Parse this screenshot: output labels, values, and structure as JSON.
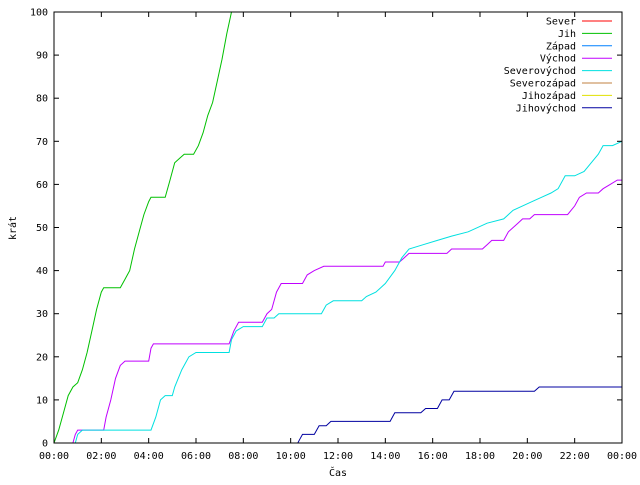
{
  "chart_data": {
    "type": "line",
    "title": "",
    "xlabel": "Čas",
    "ylabel": "krát",
    "xlim": [
      0,
      24
    ],
    "ylim": [
      0,
      100
    ],
    "grid": false,
    "legend_position": "top-right",
    "x_ticks": [
      {
        "value": 0,
        "label": "00:00"
      },
      {
        "value": 2,
        "label": "02:00"
      },
      {
        "value": 4,
        "label": "04:00"
      },
      {
        "value": 6,
        "label": "06:00"
      },
      {
        "value": 8,
        "label": "08:00"
      },
      {
        "value": 10,
        "label": "10:00"
      },
      {
        "value": 12,
        "label": "12:00"
      },
      {
        "value": 14,
        "label": "14:00"
      },
      {
        "value": 16,
        "label": "16:00"
      },
      {
        "value": 18,
        "label": "18:00"
      },
      {
        "value": 20,
        "label": "20:00"
      },
      {
        "value": 22,
        "label": "22:00"
      },
      {
        "value": 24,
        "label": "00:00"
      }
    ],
    "y_ticks": [
      {
        "value": 0,
        "label": "0"
      },
      {
        "value": 10,
        "label": "10"
      },
      {
        "value": 20,
        "label": "20"
      },
      {
        "value": 30,
        "label": "30"
      },
      {
        "value": 40,
        "label": "40"
      },
      {
        "value": 50,
        "label": "50"
      },
      {
        "value": 60,
        "label": "60"
      },
      {
        "value": 70,
        "label": "70"
      },
      {
        "value": 80,
        "label": "80"
      },
      {
        "value": 90,
        "label": "90"
      },
      {
        "value": 100,
        "label": "100"
      }
    ],
    "series": [
      {
        "name": "Sever",
        "color": "#ff0000",
        "points": []
      },
      {
        "name": "Jih",
        "color": "#00c000",
        "points": [
          [
            0,
            0
          ],
          [
            0.2,
            3
          ],
          [
            0.4,
            7
          ],
          [
            0.6,
            11
          ],
          [
            0.8,
            13
          ],
          [
            1.0,
            14
          ],
          [
            1.2,
            17
          ],
          [
            1.4,
            21
          ],
          [
            1.6,
            26
          ],
          [
            1.8,
            31
          ],
          [
            2.0,
            35
          ],
          [
            2.1,
            36
          ],
          [
            2.8,
            36
          ],
          [
            3.0,
            38
          ],
          [
            3.2,
            40
          ],
          [
            3.4,
            45
          ],
          [
            3.6,
            49
          ],
          [
            3.8,
            53
          ],
          [
            4.0,
            56
          ],
          [
            4.1,
            57
          ],
          [
            4.7,
            57
          ],
          [
            4.9,
            61
          ],
          [
            5.1,
            65
          ],
          [
            5.3,
            66
          ],
          [
            5.5,
            67
          ],
          [
            5.9,
            67
          ],
          [
            6.1,
            69
          ],
          [
            6.3,
            72
          ],
          [
            6.5,
            76
          ],
          [
            6.7,
            79
          ],
          [
            6.9,
            84
          ],
          [
            7.1,
            89
          ],
          [
            7.3,
            95
          ],
          [
            7.5,
            100
          ]
        ]
      },
      {
        "name": "Západ",
        "color": "#0080ff",
        "points": []
      },
      {
        "name": "Východ",
        "color": "#c000ff",
        "points": [
          [
            0,
            0
          ],
          [
            0.8,
            0
          ],
          [
            0.9,
            2
          ],
          [
            1.0,
            3
          ],
          [
            2.1,
            3
          ],
          [
            2.2,
            6
          ],
          [
            2.4,
            10
          ],
          [
            2.6,
            15
          ],
          [
            2.8,
            18
          ],
          [
            3.0,
            19
          ],
          [
            4.0,
            19
          ],
          [
            4.1,
            22
          ],
          [
            4.2,
            23
          ],
          [
            7.4,
            23
          ],
          [
            7.6,
            26
          ],
          [
            7.8,
            28
          ],
          [
            8.8,
            28
          ],
          [
            9.0,
            30
          ],
          [
            9.2,
            31
          ],
          [
            9.4,
            35
          ],
          [
            9.6,
            37
          ],
          [
            10.5,
            37
          ],
          [
            10.7,
            39
          ],
          [
            11.0,
            40
          ],
          [
            11.4,
            41
          ],
          [
            13.9,
            41
          ],
          [
            14.0,
            42
          ],
          [
            14.6,
            42
          ],
          [
            14.8,
            43
          ],
          [
            15.0,
            44
          ],
          [
            16.6,
            44
          ],
          [
            16.8,
            45
          ],
          [
            18.1,
            45
          ],
          [
            18.3,
            46
          ],
          [
            18.5,
            47
          ],
          [
            19.0,
            47
          ],
          [
            19.2,
            49
          ],
          [
            19.6,
            51
          ],
          [
            19.8,
            52
          ],
          [
            20.1,
            52
          ],
          [
            20.3,
            53
          ],
          [
            21.7,
            53
          ],
          [
            22.0,
            55
          ],
          [
            22.2,
            57
          ],
          [
            22.5,
            58
          ],
          [
            23.0,
            58
          ],
          [
            23.2,
            59
          ],
          [
            23.5,
            60
          ],
          [
            23.8,
            61
          ],
          [
            24.0,
            61
          ]
        ]
      },
      {
        "name": "Severovýchod",
        "color": "#00e0e0",
        "points": [
          [
            0,
            0
          ],
          [
            0.9,
            0
          ],
          [
            1.0,
            2
          ],
          [
            1.2,
            3
          ],
          [
            4.1,
            3
          ],
          [
            4.3,
            6
          ],
          [
            4.5,
            10
          ],
          [
            4.7,
            11
          ],
          [
            5.0,
            11
          ],
          [
            5.1,
            13
          ],
          [
            5.4,
            17
          ],
          [
            5.7,
            20
          ],
          [
            6.0,
            21
          ],
          [
            7.4,
            21
          ],
          [
            7.5,
            24
          ],
          [
            7.7,
            26
          ],
          [
            8.0,
            27
          ],
          [
            8.8,
            27
          ],
          [
            9.0,
            29
          ],
          [
            9.3,
            29
          ],
          [
            9.5,
            30
          ],
          [
            11.3,
            30
          ],
          [
            11.5,
            32
          ],
          [
            11.8,
            33
          ],
          [
            13.0,
            33
          ],
          [
            13.2,
            34
          ],
          [
            13.6,
            35
          ],
          [
            14.0,
            37
          ],
          [
            14.4,
            40
          ],
          [
            14.7,
            43
          ],
          [
            15.0,
            45
          ],
          [
            15.6,
            46
          ],
          [
            16.2,
            47
          ],
          [
            16.8,
            48
          ],
          [
            17.5,
            49
          ],
          [
            18.3,
            51
          ],
          [
            19.0,
            52
          ],
          [
            19.4,
            54
          ],
          [
            19.8,
            55
          ],
          [
            20.2,
            56
          ],
          [
            20.6,
            57
          ],
          [
            21.0,
            58
          ],
          [
            21.3,
            59
          ],
          [
            21.6,
            62
          ],
          [
            22.0,
            62
          ],
          [
            22.4,
            63
          ],
          [
            22.7,
            65
          ],
          [
            23.0,
            67
          ],
          [
            23.2,
            69
          ],
          [
            23.6,
            69
          ],
          [
            24.0,
            70
          ]
        ]
      },
      {
        "name": "Severozápad",
        "color": "#c08040",
        "points": []
      },
      {
        "name": "Jihozápad",
        "color": "#e0e000",
        "points": []
      },
      {
        "name": "Jihovýchod",
        "color": "#0000a0",
        "points": [
          [
            0,
            0
          ],
          [
            10.3,
            0
          ],
          [
            10.4,
            1
          ],
          [
            10.5,
            2
          ],
          [
            11.0,
            2
          ],
          [
            11.2,
            4
          ],
          [
            11.5,
            4
          ],
          [
            11.7,
            5
          ],
          [
            14.2,
            5
          ],
          [
            14.4,
            7
          ],
          [
            15.5,
            7
          ],
          [
            15.7,
            8
          ],
          [
            16.2,
            8
          ],
          [
            16.4,
            10
          ],
          [
            16.7,
            10
          ],
          [
            16.9,
            12
          ],
          [
            20.3,
            12
          ],
          [
            20.5,
            13
          ],
          [
            24.0,
            13
          ]
        ]
      }
    ]
  }
}
